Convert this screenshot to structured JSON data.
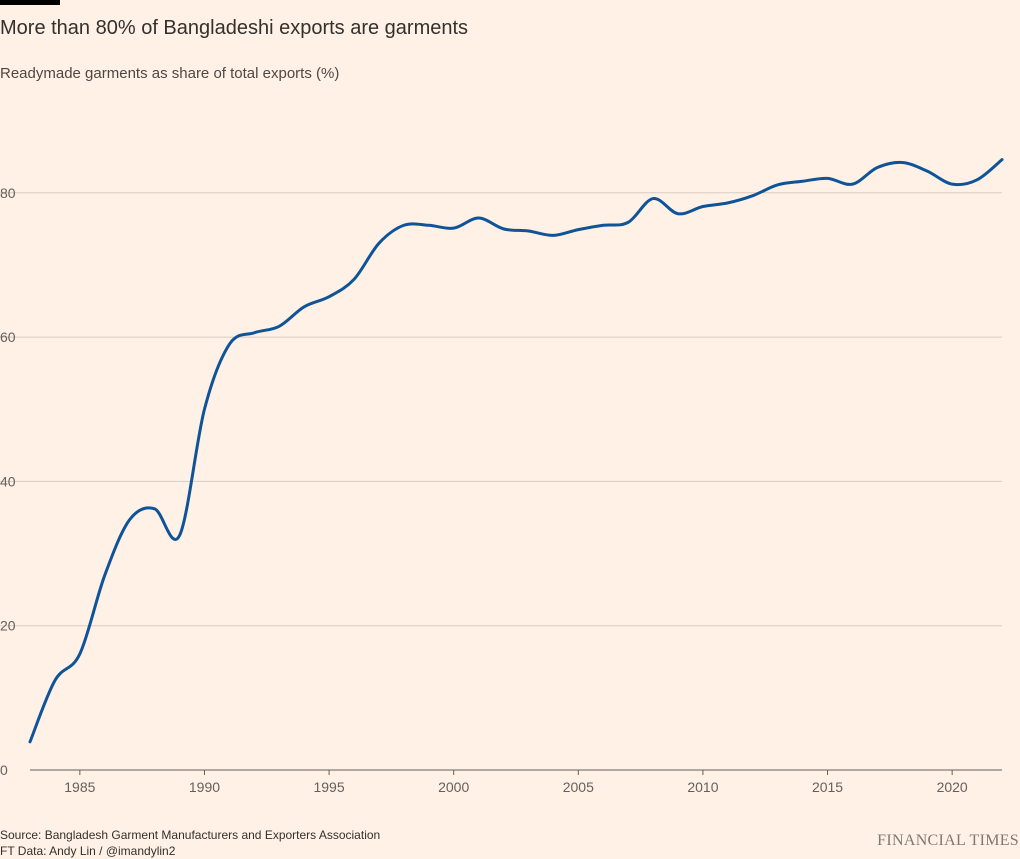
{
  "header": {
    "title": "More than 80% of Bangladeshi exports are garments",
    "subtitle": "Readymade garments as share of total exports (%)"
  },
  "footer": {
    "source_line": "Source: Bangladesh Garment Manufacturers and Exporters Association",
    "credit_line": "FT Data: Andy Lin / @imandylin2",
    "logo_text": "FINANCIAL TIMES"
  },
  "colors": {
    "background": "#FFF1E5",
    "line": "#0F5499",
    "gridline": "#D9CCC3",
    "axis": "#66605C"
  },
  "chart_data": {
    "type": "line",
    "title": "More than 80% of Bangladeshi exports are garments",
    "subtitle": "Readymade garments as share of total exports (%)",
    "xlabel": "",
    "ylabel": "",
    "xlim": [
      1983,
      2022
    ],
    "ylim": [
      0,
      90
    ],
    "x_ticks": [
      1985,
      1990,
      1995,
      2000,
      2005,
      2010,
      2015,
      2020
    ],
    "y_ticks": [
      0,
      20,
      40,
      60,
      80
    ],
    "grid": "horizontal",
    "legend": "none",
    "series": [
      {
        "x": [
          1983,
          1984,
          1985,
          1986,
          1987,
          1988,
          1989,
          1990,
          1991,
          1992,
          1993,
          1994,
          1995,
          1996,
          1997,
          1998,
          1999,
          2000,
          2001,
          2002,
          2003,
          2004,
          2005,
          2006,
          2007,
          2008,
          2009,
          2010,
          2011,
          2012,
          2013,
          2014,
          2015,
          2016,
          2017,
          2018,
          2019,
          2020,
          2021,
          2022
        ],
        "values": [
          3.9,
          12.4,
          16.1,
          27.0,
          34.7,
          36.2,
          32.5,
          50.0,
          59.0,
          60.6,
          61.5,
          64.2,
          65.6,
          68.0,
          73.0,
          75.5,
          75.5,
          75.1,
          76.5,
          75.0,
          74.7,
          74.1,
          74.9,
          75.5,
          75.9,
          79.2,
          77.1,
          78.1,
          78.6,
          79.6,
          81.1,
          81.6,
          82.0,
          81.2,
          83.5,
          84.2,
          83.0,
          81.2,
          81.8,
          84.6
        ]
      }
    ]
  }
}
